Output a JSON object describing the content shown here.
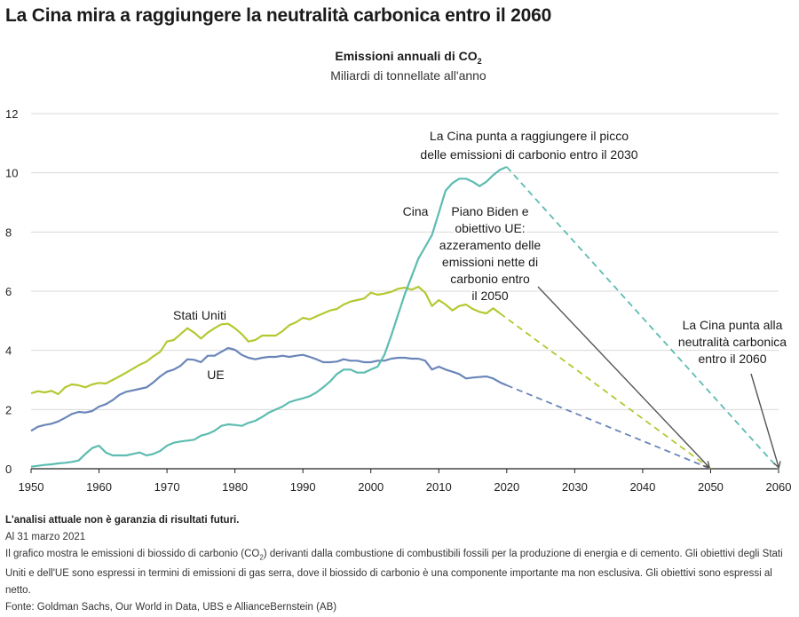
{
  "page": {
    "title": "La Cina mira a raggiungere la neutralità carbonica entro il 2060"
  },
  "chart_data": {
    "type": "line",
    "title": "Emissioni annuali di CO",
    "title_subscript": "2",
    "subtitle": "Miliardi di tonnellate all'anno",
    "xlim": [
      1950,
      2060
    ],
    "ylim": [
      0,
      12
    ],
    "x_ticks": [
      "1950",
      "1960",
      "1970",
      "1980",
      "1990",
      "2000",
      "2010",
      "2020",
      "2030",
      "2040",
      "2050",
      "2060"
    ],
    "y_ticks": [
      "0",
      "2",
      "4",
      "6",
      "8",
      "10",
      "12"
    ],
    "grid": true,
    "series": [
      {
        "name": "Stati Uniti",
        "color": "#b5c832",
        "x": [
          1950,
          1951,
          1952,
          1953,
          1954,
          1955,
          1956,
          1957,
          1958,
          1959,
          1960,
          1961,
          1962,
          1963,
          1964,
          1965,
          1966,
          1967,
          1968,
          1969,
          1970,
          1971,
          1972,
          1973,
          1974,
          1975,
          1976,
          1977,
          1978,
          1979,
          1980,
          1981,
          1982,
          1983,
          1984,
          1985,
          1986,
          1987,
          1988,
          1989,
          1990,
          1991,
          1992,
          1993,
          1994,
          1995,
          1996,
          1997,
          1998,
          1999,
          2000,
          2001,
          2002,
          2003,
          2004,
          2005,
          2006,
          2007,
          2008,
          2009,
          2010,
          2011,
          2012,
          2013,
          2014,
          2015,
          2016,
          2017,
          2018,
          2019
        ],
        "values": [
          2.55,
          2.62,
          2.58,
          2.63,
          2.52,
          2.75,
          2.85,
          2.82,
          2.75,
          2.85,
          2.9,
          2.88,
          3.0,
          3.12,
          3.25,
          3.38,
          3.52,
          3.62,
          3.8,
          3.95,
          4.3,
          4.35,
          4.55,
          4.75,
          4.6,
          4.4,
          4.6,
          4.75,
          4.88,
          4.9,
          4.75,
          4.55,
          4.3,
          4.35,
          4.5,
          4.5,
          4.5,
          4.65,
          4.85,
          4.95,
          5.1,
          5.05,
          5.15,
          5.25,
          5.35,
          5.4,
          5.55,
          5.65,
          5.7,
          5.75,
          5.95,
          5.88,
          5.92,
          5.98,
          6.08,
          6.12,
          6.05,
          6.15,
          5.95,
          5.5,
          5.7,
          5.55,
          5.35,
          5.5,
          5.55,
          5.4,
          5.3,
          5.25,
          5.42,
          5.25
        ]
      },
      {
        "name": "UE",
        "color": "#6a86b8",
        "x": [
          1950,
          1951,
          1952,
          1953,
          1954,
          1955,
          1956,
          1957,
          1958,
          1959,
          1960,
          1961,
          1962,
          1963,
          1964,
          1965,
          1966,
          1967,
          1968,
          1969,
          1970,
          1971,
          1972,
          1973,
          1974,
          1975,
          1976,
          1977,
          1978,
          1979,
          1980,
          1981,
          1982,
          1983,
          1984,
          1985,
          1986,
          1987,
          1988,
          1989,
          1990,
          1991,
          1992,
          1993,
          1994,
          1995,
          1996,
          1997,
          1998,
          1999,
          2000,
          2001,
          2002,
          2003,
          2004,
          2005,
          2006,
          2007,
          2008,
          2009,
          2010,
          2011,
          2012,
          2013,
          2014,
          2015,
          2016,
          2017,
          2018,
          2019,
          2020
        ],
        "values": [
          1.28,
          1.42,
          1.48,
          1.52,
          1.6,
          1.72,
          1.85,
          1.92,
          1.9,
          1.95,
          2.1,
          2.18,
          2.32,
          2.5,
          2.6,
          2.65,
          2.7,
          2.75,
          2.92,
          3.12,
          3.28,
          3.35,
          3.48,
          3.7,
          3.68,
          3.6,
          3.82,
          3.82,
          3.95,
          4.08,
          4.02,
          3.85,
          3.75,
          3.7,
          3.75,
          3.78,
          3.78,
          3.82,
          3.78,
          3.82,
          3.85,
          3.78,
          3.7,
          3.6,
          3.6,
          3.62,
          3.7,
          3.65,
          3.65,
          3.6,
          3.6,
          3.65,
          3.65,
          3.72,
          3.75,
          3.75,
          3.72,
          3.72,
          3.65,
          3.35,
          3.45,
          3.35,
          3.28,
          3.2,
          3.05,
          3.08,
          3.1,
          3.12,
          3.05,
          2.92,
          2.82
        ]
      },
      {
        "name": "Cina",
        "color": "#5cbcb0",
        "x": [
          1950,
          1951,
          1952,
          1953,
          1954,
          1955,
          1956,
          1957,
          1958,
          1959,
          1960,
          1961,
          1962,
          1963,
          1964,
          1965,
          1966,
          1967,
          1968,
          1969,
          1970,
          1971,
          1972,
          1973,
          1974,
          1975,
          1976,
          1977,
          1978,
          1979,
          1980,
          1981,
          1982,
          1983,
          1984,
          1985,
          1986,
          1987,
          1988,
          1989,
          1990,
          1991,
          1992,
          1993,
          1994,
          1995,
          1996,
          1997,
          1998,
          1999,
          2000,
          2001,
          2002,
          2003,
          2004,
          2005,
          2006,
          2007,
          2008,
          2009,
          2010,
          2011,
          2012,
          2013,
          2014,
          2015,
          2016,
          2017,
          2018,
          2019,
          2020
        ],
        "values": [
          0.07,
          0.1,
          0.13,
          0.15,
          0.18,
          0.2,
          0.23,
          0.28,
          0.5,
          0.7,
          0.78,
          0.55,
          0.45,
          0.45,
          0.45,
          0.5,
          0.55,
          0.45,
          0.5,
          0.6,
          0.78,
          0.88,
          0.92,
          0.95,
          0.98,
          1.12,
          1.18,
          1.28,
          1.45,
          1.5,
          1.48,
          1.45,
          1.55,
          1.62,
          1.75,
          1.9,
          2.0,
          2.1,
          2.25,
          2.32,
          2.38,
          2.45,
          2.58,
          2.75,
          2.95,
          3.2,
          3.35,
          3.35,
          3.25,
          3.25,
          3.35,
          3.45,
          3.85,
          4.5,
          5.2,
          5.9,
          6.5,
          7.1,
          7.5,
          7.9,
          8.65,
          9.4,
          9.65,
          9.8,
          9.8,
          9.7,
          9.55,
          9.7,
          9.92,
          10.1,
          10.2
        ]
      }
    ],
    "projections": [
      {
        "name": "Cina",
        "color": "#5cbcb0",
        "from": [
          2020,
          10.2
        ],
        "to": [
          2060,
          0
        ]
      },
      {
        "name": "Stati Uniti",
        "color": "#b5c832",
        "from": [
          2019,
          5.25
        ],
        "to": [
          2050,
          0
        ]
      },
      {
        "name": "UE",
        "color": "#6a86b8",
        "from": [
          2020,
          2.82
        ],
        "to": [
          2050,
          0
        ]
      }
    ],
    "labels": {
      "us": "Stati Uniti",
      "eu": "UE",
      "china": "Cina"
    },
    "annotations": {
      "china_peak": [
        "La Cina punta a raggiungere il picco",
        "delle emissioni di carbonio entro il 2030"
      ],
      "us_eu_2050": [
        "Piano Biden e",
        "obiettivo UE:",
        "azzeramento delle",
        "emissioni nette di",
        "carbonio entro",
        "il 2050"
      ],
      "china_neutral": [
        "La Cina punta alla",
        "neutralità carbonica",
        "entro il 2060"
      ]
    },
    "annotation_arrow_color": "#555555"
  },
  "footer": {
    "disclaimer": "L'analisi attuale non è garanzia di risultati futuri.",
    "date": "Al 31 marzo 2021",
    "note_part1": "Il grafico mostra le emissioni di biossido di carbonio (CO",
    "note_sub": "2",
    "note_part2": ") derivanti dalla combustione di combustibili fossili per la produzione di energia e di cemento. Gli obiettivi degli Stati Uniti e dell'UE sono espressi in termini di emissioni di gas serra, dove il biossido di carbonio è una componente importante ma non esclusiva. Gli obiettivi sono espressi al netto.",
    "source": "Fonte: Goldman Sachs, Our World in Data, UBS e AllianceBernstein (AB)"
  }
}
